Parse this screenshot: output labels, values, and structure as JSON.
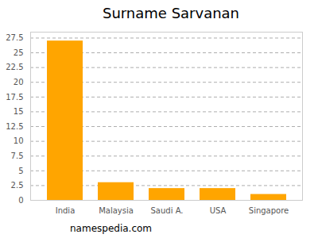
{
  "chart_data": {
    "type": "bar",
    "title": "Surname Sarvanan",
    "categories": [
      "India",
      "Malaysia",
      "Saudi A.",
      "USA",
      "Singapore"
    ],
    "values": [
      27,
      3,
      2,
      2,
      1
    ],
    "color": "#ffa500",
    "ylim": [
      0,
      28.5
    ],
    "yticks": [
      0,
      2.5,
      5,
      7.5,
      10,
      12.5,
      15,
      17.5,
      20,
      22.5,
      25,
      27.5
    ],
    "grid": true,
    "caption": "namespedia.com"
  }
}
